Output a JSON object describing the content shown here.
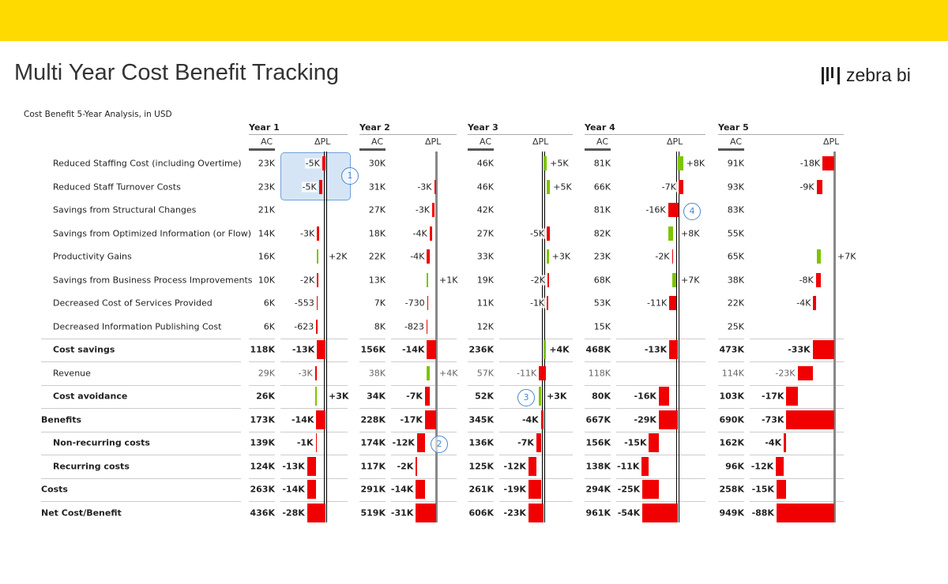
{
  "header": {
    "title": "Multi Year Cost Benefit Tracking",
    "logo_text": "zebra bi",
    "subtitle": "Cost Benefit 5-Year Analysis, in USD"
  },
  "colors": {
    "accent": "#FFDA00",
    "negative": "#F00000",
    "positive": "#7DC400",
    "annotation": "#4A86D0"
  },
  "columns": {
    "ac": "AC",
    "delta": "ΔPL"
  },
  "annotations": [
    {
      "label": "1",
      "year": "Year 1",
      "rows": [
        "Reduced Staffing Cost (including Overtime)",
        "Reduced Staff Turnover Costs"
      ]
    },
    {
      "label": "2",
      "year": "Year 2",
      "rows": [
        "Non-recurring costs"
      ]
    },
    {
      "label": "3",
      "year": "Year 3",
      "rows": [
        "Cost avoidance"
      ]
    },
    {
      "label": "4",
      "year": "Year 4",
      "rows": [
        "Savings from Structural Changes"
      ]
    }
  ],
  "chart_data": {
    "type": "table",
    "unit": "USD",
    "rows": [
      {
        "label": "Reduced Staffing Cost (including Overtime)",
        "style": "item"
      },
      {
        "label": "Reduced Staff Turnover Costs",
        "style": "item"
      },
      {
        "label": "Savings from Structural Changes",
        "style": "item"
      },
      {
        "label": "Savings from Optimized Information (or Flow)",
        "style": "item"
      },
      {
        "label": "Productivity Gains",
        "style": "item"
      },
      {
        "label": "Savings from Business Process Improvements",
        "style": "item"
      },
      {
        "label": "Decreased Cost of Services Provided",
        "style": "item"
      },
      {
        "label": "Decreased Information Publishing Cost",
        "style": "item"
      },
      {
        "label": "Cost savings",
        "style": "subtotal"
      },
      {
        "label": "Revenue",
        "style": "muted"
      },
      {
        "label": "Cost avoidance",
        "style": "subtotal"
      },
      {
        "label": "Benefits",
        "style": "total"
      },
      {
        "label": "Non-recurring costs",
        "style": "subtotal"
      },
      {
        "label": "Recurring costs",
        "style": "subtotal"
      },
      {
        "label": "Costs",
        "style": "total"
      },
      {
        "label": "Net Cost/Benefit",
        "style": "total"
      }
    ],
    "years": [
      {
        "name": "Year 1",
        "ac": [
          "23K",
          "23K",
          "21K",
          "14K",
          "16K",
          "10K",
          "6K",
          "6K",
          "118K",
          "29K",
          "26K",
          "173K",
          "139K",
          "124K",
          "263K",
          "436K"
        ],
        "delta_labels": [
          "-5K",
          "-5K",
          "",
          "-3K",
          "+2K",
          "-2K",
          "-553",
          "-623",
          "-13K",
          "-3K",
          "+3K",
          "-14K",
          "-1K",
          "-13K",
          "-14K",
          "-28K"
        ],
        "delta_k": [
          -5,
          -5,
          null,
          -3,
          2,
          -2,
          -0.553,
          -0.623,
          -13,
          -3,
          3,
          -14,
          -1,
          -13,
          -14,
          -28
        ]
      },
      {
        "name": "Year 2",
        "ac": [
          "30K",
          "31K",
          "27K",
          "18K",
          "22K",
          "13K",
          "7K",
          "8K",
          "156K",
          "38K",
          "34K",
          "228K",
          "174K",
          "117K",
          "291K",
          "519K"
        ],
        "delta_labels": [
          "",
          "-3K",
          "-3K",
          "-4K",
          "-4K",
          "+1K",
          "-730",
          "-823",
          "-14K",
          "+4K",
          "-7K",
          "-17K",
          "-12K",
          "-2K",
          "-14K",
          "-31K"
        ],
        "delta_k": [
          null,
          -3,
          -3,
          -4,
          -4,
          1,
          -0.73,
          -0.823,
          -14,
          4,
          -7,
          -17,
          -12,
          -2,
          -14,
          -31
        ]
      },
      {
        "name": "Year 3",
        "ac": [
          "46K",
          "46K",
          "42K",
          "27K",
          "33K",
          "19K",
          "11K",
          "12K",
          "236K",
          "57K",
          "52K",
          "345K",
          "136K",
          "125K",
          "261K",
          "606K"
        ],
        "delta_labels": [
          "+5K",
          "+5K",
          "",
          "-5K",
          "+3K",
          "-2K",
          "-1K",
          "",
          "+4K",
          "-11K",
          "+3K",
          "-4K",
          "-7K",
          "-12K",
          "-19K",
          "-23K"
        ],
        "delta_k": [
          5,
          5,
          null,
          -5,
          3,
          -2,
          -1,
          null,
          4,
          -11,
          3,
          -4,
          -7,
          -12,
          -19,
          -23
        ]
      },
      {
        "name": "Year 4",
        "ac": [
          "81K",
          "66K",
          "81K",
          "82K",
          "23K",
          "68K",
          "53K",
          "15K",
          "468K",
          "118K",
          "80K",
          "667K",
          "156K",
          "138K",
          "294K",
          "961K"
        ],
        "delta_labels": [
          "+8K",
          "-7K",
          "-16K",
          "+8K",
          "-2K",
          "+7K",
          "-11K",
          "",
          "-13K",
          "",
          "-16K",
          "-29K",
          "-15K",
          "-11K",
          "-25K",
          "-54K"
        ],
        "delta_k": [
          8,
          -7,
          -16,
          8,
          -2,
          7,
          -11,
          null,
          -13,
          null,
          -16,
          -29,
          -15,
          -11,
          -25,
          -54
        ]
      },
      {
        "name": "Year 5",
        "ac": [
          "91K",
          "93K",
          "83K",
          "55K",
          "65K",
          "38K",
          "22K",
          "25K",
          "473K",
          "114K",
          "103K",
          "690K",
          "162K",
          "96K",
          "258K",
          "949K"
        ],
        "delta_labels": [
          "-18K",
          "-9K",
          "",
          "",
          "+7K",
          "-8K",
          "-4K",
          "",
          "-33K",
          "-23K",
          "-17K",
          "-73K",
          "-4K",
          "-12K",
          "-15K",
          "-88K"
        ],
        "delta_k": [
          -18,
          -9,
          null,
          null,
          7,
          -8,
          -4,
          null,
          -33,
          -23,
          -17,
          -73,
          -4,
          -12,
          -15,
          -88
        ]
      }
    ]
  }
}
